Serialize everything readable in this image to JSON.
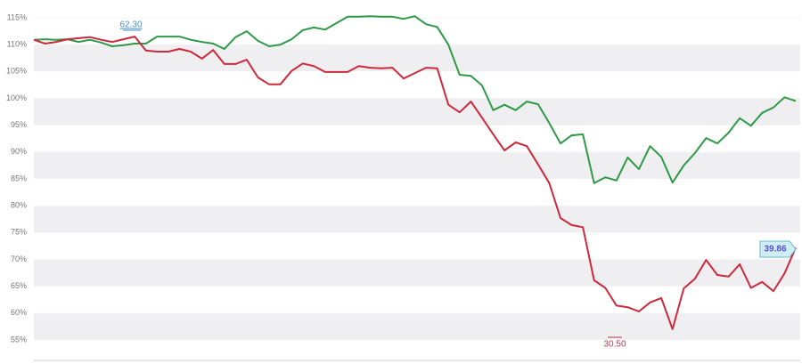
{
  "chart_data": {
    "type": "line",
    "categories": [
      null,
      null,
      null,
      null,
      null,
      null,
      null,
      null,
      null,
      null,
      null,
      null,
      null,
      null,
      null,
      null,
      null,
      null,
      null,
      null,
      null,
      null,
      null,
      null,
      null,
      null,
      null,
      null,
      null,
      null,
      null,
      null,
      null,
      null,
      null,
      null,
      null,
      null,
      null,
      null,
      null,
      null,
      null,
      null,
      null,
      null,
      null,
      null,
      null,
      null,
      null,
      null,
      null,
      null,
      null,
      null,
      null,
      null,
      null,
      null,
      null,
      null,
      null,
      null,
      null,
      null,
      null,
      null,
      null
    ],
    "series": [
      {
        "color": "#2e9a47",
        "values": [
          110.9,
          111.0,
          110.9,
          111.0,
          110.5,
          110.9,
          110.4,
          109.7,
          109.9,
          110.2,
          110.2,
          111.5,
          111.5,
          111.5,
          110.9,
          110.5,
          110.2,
          109.2,
          111.4,
          112.5,
          110.7,
          109.7,
          110.0,
          111.0,
          112.7,
          113.2,
          112.8,
          114.0,
          115.2,
          115.2,
          115.3,
          115.2,
          115.2,
          114.8,
          115.3,
          113.8,
          113.3,
          110.0,
          104.4,
          104.2,
          102.4,
          97.8,
          98.8,
          97.8,
          99.4,
          98.9,
          95.4,
          91.6,
          93.1,
          93.3,
          84.2,
          85.3,
          84.7,
          89.0,
          86.8,
          91.1,
          89.1,
          84.3,
          87.5,
          89.8,
          92.6,
          91.6,
          93.6,
          96.3,
          94.9,
          97.3,
          98.3,
          100.2,
          99.5
        ]
      },
      {
        "color": "#cc2a3c",
        "values": [
          110.9,
          110.2,
          110.5,
          111.0,
          111.2,
          111.4,
          110.9,
          110.5,
          111.0,
          111.5,
          108.9,
          108.7,
          108.7,
          109.2,
          108.7,
          107.4,
          109.0,
          106.4,
          106.4,
          107.2,
          103.9,
          102.6,
          102.6,
          105.1,
          106.5,
          106.0,
          104.9,
          104.9,
          104.9,
          106.0,
          105.7,
          105.6,
          105.7,
          103.7,
          104.7,
          105.7,
          105.6,
          98.8,
          97.4,
          99.4,
          96.4,
          93.3,
          90.3,
          91.8,
          91.1,
          87.7,
          84.2,
          77.7,
          76.4,
          76.0,
          66.1,
          64.7,
          61.4,
          61.1,
          60.3,
          62.0,
          62.8,
          57.0,
          64.6,
          66.4,
          69.9,
          67.1,
          66.8,
          69.1,
          64.7,
          65.8,
          64.1,
          67.4,
          72.2
        ]
      }
    ],
    "ylim": [
      53,
      115.5
    ],
    "yticks": [
      {
        "value": 55,
        "label": "55%"
      },
      {
        "value": 60,
        "label": "60%"
      },
      {
        "value": 65,
        "label": "65%"
      },
      {
        "value": 70,
        "label": "70%"
      },
      {
        "value": 75,
        "label": "75%"
      },
      {
        "value": 80,
        "label": "80%"
      },
      {
        "value": 85,
        "label": "85%"
      },
      {
        "value": 90,
        "label": "90%"
      },
      {
        "value": 95,
        "label": "95%"
      },
      {
        "value": 100,
        "label": "100%"
      },
      {
        "value": 105,
        "label": "105%"
      },
      {
        "value": 110,
        "label": "110%"
      },
      {
        "value": 115,
        "label": "115%"
      }
    ],
    "grid": true,
    "annotations": [
      "62.30",
      "30.50",
      "39.86"
    ]
  }
}
